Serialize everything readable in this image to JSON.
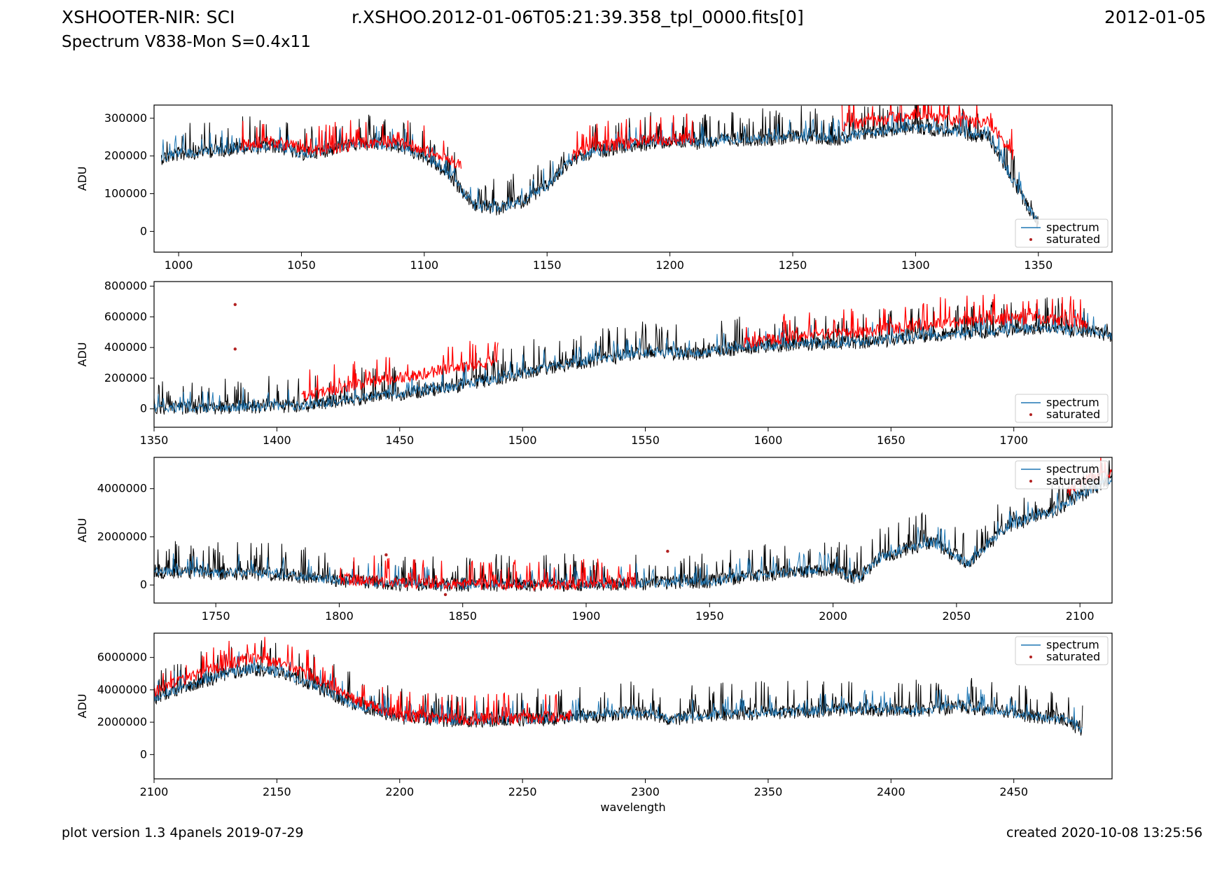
{
  "header": {
    "title": "XSHOOTER-NIR: SCI",
    "filename": "r.XSHOO.2012-01-06T05:21:39.358_tpl_0000.fits[0]",
    "date": "2012-01-05",
    "subtitle": "Spectrum V838-Mon S=0.4x11"
  },
  "footer": {
    "version": "plot version 1.3 4panels  2019-07-29",
    "created": "created 2020-10-08 13:25:56"
  },
  "colors": {
    "spectrum": "#1f77b4",
    "saturated": "#ff0000",
    "saturated_marker": "#b22222",
    "raw_spectrum": "#000000"
  },
  "chart_data": [
    {
      "type": "line",
      "xlim": [
        990,
        1380
      ],
      "ylim": [
        -55000,
        335000
      ],
      "xticks": [
        1000,
        1050,
        1100,
        1150,
        1200,
        1250,
        1300,
        1350
      ],
      "yticks": [
        0,
        100000,
        200000,
        300000
      ],
      "ylabel": "ADU",
      "xlabel": "wavelength",
      "legend": {
        "position": "lower-right",
        "entries": [
          "spectrum",
          "saturated"
        ]
      },
      "series": [
        {
          "name": "spectrum",
          "x": [
            993,
            1000,
            1010,
            1020,
            1030,
            1040,
            1050,
            1060,
            1070,
            1080,
            1090,
            1100,
            1110,
            1120,
            1130,
            1140,
            1150,
            1160,
            1170,
            1180,
            1190,
            1200,
            1210,
            1220,
            1230,
            1240,
            1250,
            1260,
            1270,
            1280,
            1290,
            1300,
            1310,
            1320,
            1330,
            1340,
            1350
          ],
          "y": [
            195000,
            205000,
            212000,
            218000,
            222000,
            226000,
            205000,
            215000,
            230000,
            232000,
            225000,
            200000,
            150000,
            70000,
            60000,
            80000,
            120000,
            190000,
            210000,
            225000,
            230000,
            240000,
            235000,
            240000,
            245000,
            245000,
            250000,
            250000,
            245000,
            260000,
            270000,
            275000,
            270000,
            260000,
            250000,
            130000,
            20000
          ]
        },
        {
          "name": "saturated",
          "x": [
            1025,
            1035,
            1045,
            1055,
            1065,
            1075,
            1085,
            1095,
            1105,
            1115,
            1160,
            1170,
            1180,
            1190,
            1200,
            1210,
            1270,
            1280,
            1290,
            1300,
            1310,
            1320,
            1330,
            1340
          ],
          "y": [
            228000,
            235000,
            230000,
            212000,
            222000,
            235000,
            237000,
            228000,
            205000,
            175000,
            200000,
            225000,
            230000,
            240000,
            245000,
            245000,
            280000,
            290000,
            300000,
            310000,
            300000,
            290000,
            285000,
            200000
          ]
        }
      ]
    },
    {
      "type": "line",
      "xlim": [
        1350,
        1740
      ],
      "ylim": [
        -120000,
        830000
      ],
      "xticks": [
        1350,
        1400,
        1450,
        1500,
        1550,
        1600,
        1650,
        1700
      ],
      "yticks": [
        0,
        200000,
        400000,
        600000,
        800000
      ],
      "ylabel": "ADU",
      "xlabel": "wavelength",
      "legend": {
        "position": "lower-right",
        "entries": [
          "spectrum",
          "saturated"
        ]
      },
      "series": [
        {
          "name": "spectrum",
          "x": [
            1350,
            1370,
            1390,
            1410,
            1430,
            1450,
            1470,
            1490,
            1510,
            1530,
            1550,
            1570,
            1590,
            1610,
            1630,
            1650,
            1670,
            1690,
            1710,
            1730,
            1740
          ],
          "y": [
            10000,
            5000,
            15000,
            20000,
            60000,
            100000,
            140000,
            200000,
            270000,
            320000,
            370000,
            360000,
            400000,
            420000,
            430000,
            450000,
            480000,
            500000,
            530000,
            500000,
            480000
          ]
        },
        {
          "name": "saturated",
          "x": [
            1410,
            1430,
            1450,
            1470,
            1490,
            1590,
            1610,
            1630,
            1650,
            1670,
            1690,
            1710,
            1730
          ],
          "y": [
            80000,
            150000,
            200000,
            260000,
            300000,
            430000,
            470000,
            490000,
            520000,
            560000,
            580000,
            590000,
            560000
          ]
        },
        {
          "name": "saturated-points",
          "x": [
            1383,
            1383
          ],
          "y": [
            680000,
            390000
          ]
        }
      ]
    },
    {
      "type": "line",
      "xlim": [
        1725,
        2113
      ],
      "ylim": [
        -750000,
        5300000
      ],
      "xticks": [
        1750,
        1800,
        1850,
        1900,
        1950,
        2000,
        2050,
        2100
      ],
      "yticks": [
        0,
        2000000,
        4000000
      ],
      "ylabel": "ADU",
      "xlabel": "wavelength",
      "legend": {
        "position": "upper-right",
        "entries": [
          "spectrum",
          "saturated"
        ]
      },
      "series": [
        {
          "name": "spectrum",
          "x": [
            1725,
            1750,
            1775,
            1800,
            1825,
            1850,
            1875,
            1900,
            1925,
            1950,
            1975,
            2000,
            2010,
            2020,
            2040,
            2055,
            2070,
            2090,
            2100,
            2113
          ],
          "y": [
            580000,
            500000,
            450000,
            180000,
            50000,
            20000,
            20000,
            30000,
            80000,
            150000,
            450000,
            650000,
            250000,
            1200000,
            1800000,
            900000,
            2400000,
            3100000,
            3700000,
            4400000
          ]
        },
        {
          "name": "saturated",
          "x": [
            1800,
            1820,
            1840,
            1860,
            1880,
            1900,
            1920,
            2095,
            2100,
            2105,
            2113
          ],
          "y": [
            250000,
            120000,
            30000,
            20000,
            20000,
            20000,
            60000,
            3800000,
            4200000,
            4500000,
            4700000
          ]
        },
        {
          "name": "saturated-points",
          "x": [
            1819,
            1843,
            1933
          ],
          "y": [
            1250000,
            -400000,
            1400000
          ]
        }
      ]
    },
    {
      "type": "line",
      "xlim": [
        2100,
        2490
      ],
      "ylim": [
        -1500000,
        7500000
      ],
      "xticks": [
        2100,
        2150,
        2200,
        2250,
        2300,
        2350,
        2400,
        2450
      ],
      "yticks": [
        0,
        2000000,
        4000000,
        6000000
      ],
      "ylabel": "ADU",
      "xlabel": "wavelength",
      "legend": {
        "position": "upper-right",
        "entries": [
          "spectrum",
          "saturated"
        ]
      },
      "series": [
        {
          "name": "spectrum",
          "x": [
            2100,
            2115,
            2130,
            2140,
            2150,
            2165,
            2180,
            2200,
            2220,
            2240,
            2260,
            2270,
            2280,
            2295,
            2310,
            2330,
            2350,
            2370,
            2390,
            2410,
            2430,
            2450,
            2470,
            2478
          ],
          "y": [
            3500000,
            4300000,
            5000000,
            5300000,
            5100000,
            4300000,
            3200000,
            2300000,
            2100000,
            2100000,
            2200000,
            2300000,
            2400000,
            2600000,
            2200000,
            2500000,
            2600000,
            2700000,
            2800000,
            2700000,
            3000000,
            2500000,
            2200000,
            1500000
          ]
        },
        {
          "name": "saturated",
          "x": [
            2100,
            2115,
            2130,
            2140,
            2150,
            2165,
            2180,
            2200,
            2220,
            2240,
            2260,
            2270
          ],
          "y": [
            3900000,
            4800000,
            5600000,
            5900000,
            5700000,
            4800000,
            3500000,
            2400000,
            2200000,
            2200000,
            2300000,
            2400000
          ]
        }
      ]
    }
  ]
}
